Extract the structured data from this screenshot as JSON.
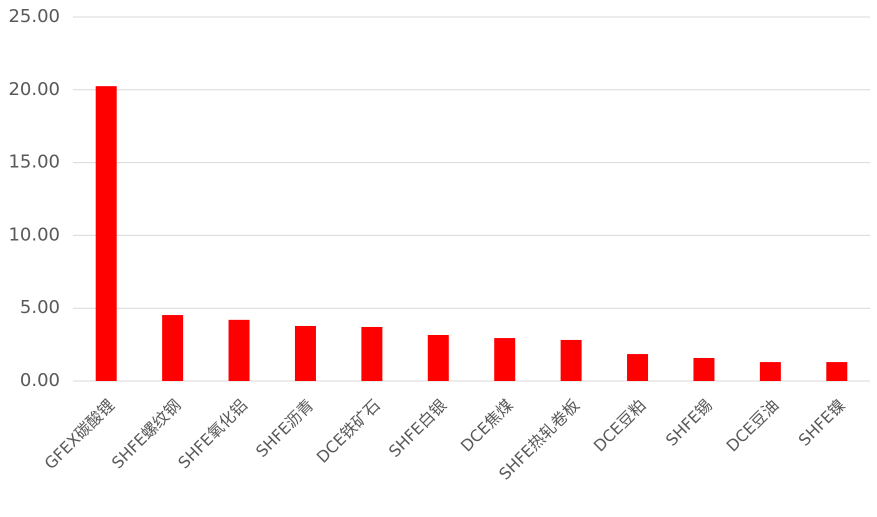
{
  "chart_data": {
    "type": "bar",
    "categories": [
      "GFEX碳酸锂",
      "SHFE螺纹钢",
      "SHFE氧化铝",
      "SHFE沥青",
      "DCE铁矿石",
      "SHFE白银",
      "DCE焦煤",
      "SHFE热轧卷板",
      "DCE豆粕",
      "SHFE锡",
      "DCE豆油",
      "SHFE镍"
    ],
    "values": [
      20.25,
      4.53,
      4.2,
      3.78,
      3.71,
      3.16,
      2.95,
      2.82,
      1.85,
      1.58,
      1.3,
      1.3
    ],
    "color": "#ff0000",
    "ylim": [
      0,
      25
    ],
    "yticks": [
      {
        "value": 0,
        "label": "0.00"
      },
      {
        "value": 5,
        "label": "5.00"
      },
      {
        "value": 10,
        "label": "10.00"
      },
      {
        "value": 15,
        "label": "15.00"
      },
      {
        "value": 20,
        "label": "20.00"
      },
      {
        "value": 25,
        "label": "25.00"
      }
    ],
    "grid": true
  }
}
